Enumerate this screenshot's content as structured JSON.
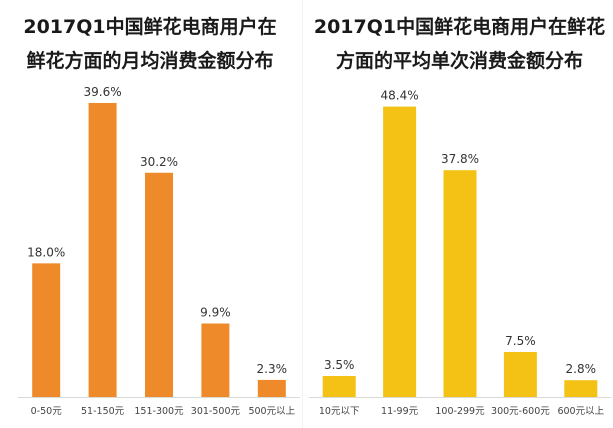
{
  "chart_data": [
    {
      "type": "bar",
      "title_lines": [
        "2017Q1中国鲜花电商用户在",
        "鲜花方面的月均消费金额分布"
      ],
      "categories": [
        "0-50元",
        "51-150元",
        "151-300元",
        "301-500元",
        "500元以上"
      ],
      "values": [
        18.0,
        39.6,
        30.2,
        9.9,
        2.3
      ],
      "value_labels": [
        "18.0%",
        "39.6%",
        "30.2%",
        "9.9%",
        "2.3%"
      ],
      "color": "#EE8A2A",
      "ylim": [
        0,
        40
      ],
      "grid": false,
      "legend": "none"
    },
    {
      "type": "bar",
      "title_lines": [
        "2017Q1中国鲜花电商用户在鲜花",
        "方面的平均单次消费金额分布"
      ],
      "categories": [
        "10元以下",
        "11-99元",
        "100-299元",
        "300元-600元",
        "600元以上"
      ],
      "values": [
        3.5,
        48.4,
        37.8,
        7.5,
        2.8
      ],
      "value_labels": [
        "3.5%",
        "48.4%",
        "37.8%",
        "7.5%",
        "2.8%"
      ],
      "color": "#F4C214",
      "ylim": [
        0,
        49
      ],
      "grid": false,
      "legend": "none"
    }
  ]
}
